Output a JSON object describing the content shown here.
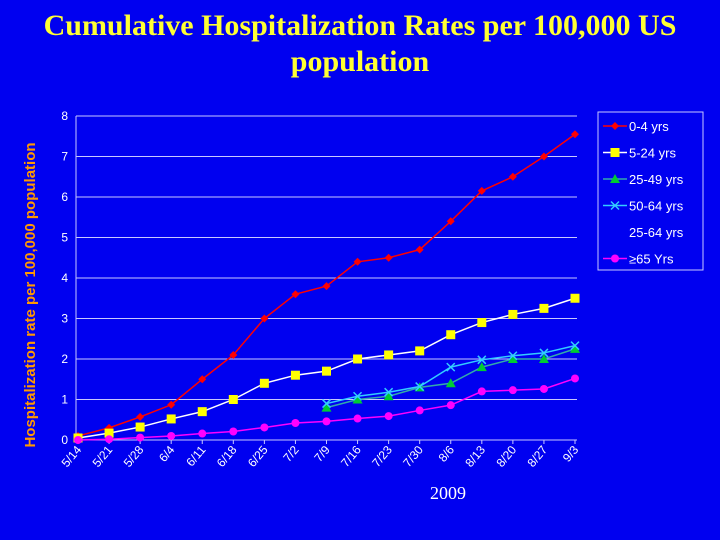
{
  "chart_data": {
    "type": "line",
    "title": "Cumulative Hospitalization Rates per 100,000 US population",
    "xlabel": "2009",
    "ylabel": "Hospitalization rate per 100,000 population",
    "ylim": [
      0,
      8
    ],
    "yticks": [
      "0",
      "1",
      "2",
      "3",
      "4",
      "5",
      "6",
      "7",
      "8"
    ],
    "grid": true,
    "legend_placement": "right",
    "categories": [
      "5/14",
      "5/21",
      "5/28",
      "6/4",
      "6/11",
      "6/18",
      "6/25",
      "7/2",
      "7/9",
      "7/16",
      "7/23",
      "7/30",
      "8/6",
      "8/13",
      "8/20",
      "8/27",
      "9/3"
    ],
    "series": [
      {
        "name": "0-4 yrs",
        "color": "#ff0000",
        "marker": "diamond",
        "values": [
          0.1,
          0.3,
          0.57,
          0.87,
          1.5,
          2.1,
          3.0,
          3.6,
          3.8,
          4.4,
          4.5,
          4.7,
          5.4,
          6.15,
          6.5,
          7.0,
          7.55
        ]
      },
      {
        "name": "5-24 yrs",
        "color": "#ffff00",
        "line": "#ffffff",
        "marker": "square",
        "values": [
          0.05,
          0.17,
          0.32,
          0.52,
          0.7,
          1.0,
          1.4,
          1.6,
          1.7,
          2.0,
          2.1,
          2.2,
          2.6,
          2.9,
          3.1,
          3.25,
          3.5
        ]
      },
      {
        "name": "25-49 yrs",
        "color": "#00cc33",
        "line": "#33aaaa",
        "marker": "triangle",
        "values": [
          null,
          null,
          null,
          null,
          null,
          null,
          null,
          null,
          0.8,
          1.0,
          1.08,
          1.3,
          1.4,
          1.8,
          2.0,
          2.0,
          2.25
        ]
      },
      {
        "name": "50-64 yrs",
        "color": "#33ccff",
        "marker": "x",
        "values": [
          null,
          null,
          null,
          null,
          null,
          null,
          null,
          null,
          0.9,
          1.08,
          1.18,
          1.32,
          1.8,
          1.98,
          2.08,
          2.15,
          2.33
        ]
      },
      {
        "name": "25-64 yrs",
        "color": "#0000f0",
        "marker": "none",
        "values": [
          null,
          null,
          null,
          null,
          null,
          null,
          null,
          null,
          null,
          null,
          null,
          null,
          null,
          null,
          null,
          null,
          null
        ]
      },
      {
        "name": "≥65 Yrs",
        "color": "#ff00ff",
        "marker": "circle",
        "values": [
          0,
          0.02,
          0.06,
          0.1,
          0.16,
          0.21,
          0.31,
          0.42,
          0.46,
          0.53,
          0.59,
          0.73,
          0.86,
          1.2,
          1.23,
          1.26,
          1.52
        ]
      }
    ]
  }
}
